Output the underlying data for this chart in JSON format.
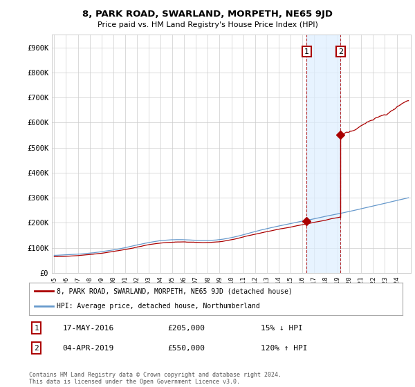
{
  "title": "8, PARK ROAD, SWARLAND, MORPETH, NE65 9JD",
  "subtitle": "Price paid vs. HM Land Registry's House Price Index (HPI)",
  "ylabel_ticks": [
    "£0",
    "£100K",
    "£200K",
    "£300K",
    "£400K",
    "£500K",
    "£600K",
    "£700K",
    "£800K",
    "£900K"
  ],
  "ytick_values": [
    0,
    100000,
    200000,
    300000,
    400000,
    500000,
    600000,
    700000,
    800000,
    900000
  ],
  "ylim": [
    0,
    950000
  ],
  "year_start": 1995,
  "year_end": 2025,
  "sale1": {
    "date": "17-MAY-2016",
    "price": 205000,
    "year": 2016.38,
    "label": "1",
    "pct": "15% ↓ HPI"
  },
  "sale2": {
    "date": "04-APR-2019",
    "price": 550000,
    "year": 2019.25,
    "label": "2",
    "pct": "120% ↑ HPI"
  },
  "legend_red": "8, PARK ROAD, SWARLAND, MORPETH, NE65 9JD (detached house)",
  "legend_blue": "HPI: Average price, detached house, Northumberland",
  "footer": "Contains HM Land Registry data © Crown copyright and database right 2024.\nThis data is licensed under the Open Government Licence v3.0.",
  "background_color": "#ffffff",
  "grid_color": "#cccccc",
  "red_color": "#aa0000",
  "blue_color": "#6699cc",
  "shade_color": "#ddeeff"
}
